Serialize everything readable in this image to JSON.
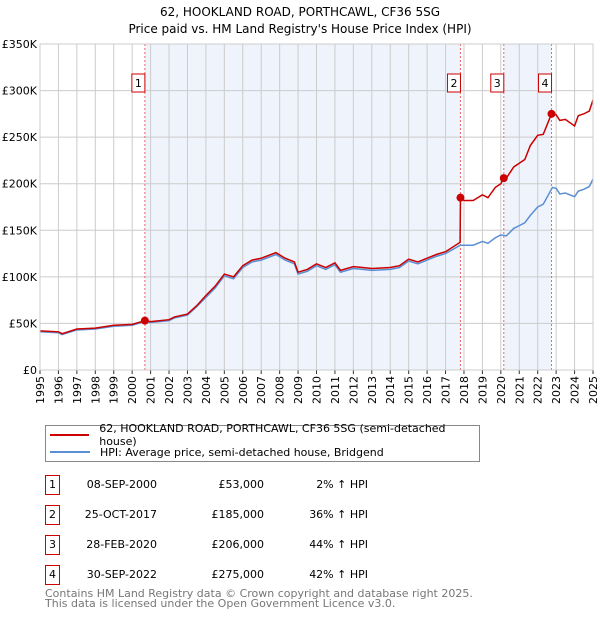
{
  "chart_data": {
    "type": "line",
    "title": "62, HOOKLAND ROAD, PORTHCAWL, CF36 5SG",
    "subtitle": "Price paid vs. HM Land Registry's House Price Index (HPI)",
    "xlim": [
      1995,
      2025
    ],
    "ylim": [
      0,
      350000
    ],
    "yticks": [
      0,
      50000,
      100000,
      150000,
      200000,
      250000,
      300000,
      350000
    ],
    "ytick_labels": [
      "£0",
      "£50K",
      "£100K",
      "£150K",
      "£200K",
      "£250K",
      "£300K",
      "£350K"
    ],
    "xticks": [
      "1995",
      "1996",
      "1997",
      "1998",
      "1999",
      "2000",
      "2001",
      "2002",
      "2003",
      "2004",
      "2005",
      "2006",
      "2007",
      "2008",
      "2009",
      "2010",
      "2011",
      "2012",
      "2013",
      "2014",
      "2015",
      "2016",
      "2017",
      "2018",
      "2019",
      "2020",
      "2021",
      "2022",
      "2023",
      "2024",
      "2025"
    ],
    "grid": true,
    "colors": {
      "property": "#cc0000",
      "hpi": "#5b8fd4",
      "shade": "#eef3fc"
    },
    "series": [
      {
        "name": "62, HOOKLAND ROAD, PORTHCAWL, CF36 5SG (semi-detached house)",
        "points": [
          [
            1995,
            42000
          ],
          [
            1996,
            41000
          ],
          [
            1996.2,
            39000
          ],
          [
            1997,
            44000
          ],
          [
            1998,
            45000
          ],
          [
            1999,
            48000
          ],
          [
            2000,
            49000
          ],
          [
            2000.69,
            53000
          ],
          [
            2001,
            52000
          ],
          [
            2002,
            54000
          ],
          [
            2002.3,
            57000
          ],
          [
            2003,
            60000
          ],
          [
            2003.5,
            69000
          ],
          [
            2004,
            80000
          ],
          [
            2004.5,
            90000
          ],
          [
            2005,
            103000
          ],
          [
            2005.5,
            100000
          ],
          [
            2006,
            112000
          ],
          [
            2006.5,
            118000
          ],
          [
            2007,
            120000
          ],
          [
            2007.8,
            126000
          ],
          [
            2008.3,
            120000
          ],
          [
            2008.8,
            116000
          ],
          [
            2009,
            105000
          ],
          [
            2009.5,
            108000
          ],
          [
            2010,
            114000
          ],
          [
            2010.5,
            110000
          ],
          [
            2011,
            115000
          ],
          [
            2011.3,
            107000
          ],
          [
            2012,
            111000
          ],
          [
            2012.5,
            110000
          ],
          [
            2013,
            109000
          ],
          [
            2014,
            110000
          ],
          [
            2014.5,
            112000
          ],
          [
            2015,
            119000
          ],
          [
            2015.5,
            116000
          ],
          [
            2016,
            120000
          ],
          [
            2016.5,
            124000
          ],
          [
            2017,
            127000
          ],
          [
            2017.79,
            137000
          ],
          [
            2017.81,
            185000
          ],
          [
            2018,
            182000
          ],
          [
            2018.5,
            182000
          ],
          [
            2019,
            188000
          ],
          [
            2019.3,
            185000
          ],
          [
            2019.7,
            196000
          ],
          [
            2020,
            200000
          ],
          [
            2020.16,
            206000
          ],
          [
            2020.3,
            206000
          ],
          [
            2020.7,
            218000
          ],
          [
            2021,
            222000
          ],
          [
            2021.3,
            226000
          ],
          [
            2021.6,
            241000
          ],
          [
            2022,
            252000
          ],
          [
            2022.3,
            253000
          ],
          [
            2022.75,
            275000
          ],
          [
            2023,
            274000
          ],
          [
            2023.2,
            268000
          ],
          [
            2023.5,
            269000
          ],
          [
            2024,
            262000
          ],
          [
            2024.2,
            273000
          ],
          [
            2024.5,
            275000
          ],
          [
            2024.8,
            278000
          ],
          [
            2025,
            290000
          ]
        ]
      },
      {
        "name": "HPI: Average price, semi-detached house, Bridgend",
        "points": [
          [
            1995,
            41000
          ],
          [
            1996,
            40000
          ],
          [
            1996.2,
            38000
          ],
          [
            1997,
            43000
          ],
          [
            1998,
            44000
          ],
          [
            1999,
            47000
          ],
          [
            2000,
            48000
          ],
          [
            2000.69,
            52000
          ],
          [
            2001,
            51000
          ],
          [
            2002,
            53000
          ],
          [
            2002.3,
            56000
          ],
          [
            2003,
            59000
          ],
          [
            2003.5,
            68000
          ],
          [
            2004,
            78000
          ],
          [
            2004.5,
            88000
          ],
          [
            2005,
            101000
          ],
          [
            2005.5,
            98000
          ],
          [
            2006,
            110000
          ],
          [
            2006.5,
            116000
          ],
          [
            2007,
            118000
          ],
          [
            2007.8,
            124000
          ],
          [
            2008.3,
            118000
          ],
          [
            2008.8,
            114000
          ],
          [
            2009,
            103000
          ],
          [
            2009.5,
            106000
          ],
          [
            2010,
            112000
          ],
          [
            2010.5,
            108000
          ],
          [
            2011,
            113000
          ],
          [
            2011.3,
            105000
          ],
          [
            2012,
            109000
          ],
          [
            2012.5,
            108000
          ],
          [
            2013,
            107000
          ],
          [
            2014,
            108000
          ],
          [
            2014.5,
            110000
          ],
          [
            2015,
            117000
          ],
          [
            2015.5,
            114000
          ],
          [
            2016,
            118000
          ],
          [
            2016.5,
            122000
          ],
          [
            2017,
            125000
          ],
          [
            2017.8,
            134000
          ],
          [
            2018,
            134000
          ],
          [
            2018.5,
            134000
          ],
          [
            2019,
            138000
          ],
          [
            2019.3,
            136000
          ],
          [
            2019.7,
            142000
          ],
          [
            2020,
            145000
          ],
          [
            2020.3,
            144000
          ],
          [
            2020.7,
            152000
          ],
          [
            2021,
            155000
          ],
          [
            2021.3,
            158000
          ],
          [
            2021.6,
            166000
          ],
          [
            2022,
            175000
          ],
          [
            2022.3,
            178000
          ],
          [
            2022.8,
            196000
          ],
          [
            2023,
            195000
          ],
          [
            2023.2,
            189000
          ],
          [
            2023.5,
            190000
          ],
          [
            2024,
            186000
          ],
          [
            2024.2,
            192000
          ],
          [
            2024.5,
            194000
          ],
          [
            2024.8,
            197000
          ],
          [
            2025,
            205000
          ]
        ]
      }
    ],
    "sales": [
      {
        "label": "1",
        "x": 2000.69,
        "price": 53000
      },
      {
        "label": "2",
        "x": 2017.81,
        "price": 185000
      },
      {
        "label": "3",
        "x": 2020.16,
        "price": 206000
      },
      {
        "label": "4",
        "x": 2022.75,
        "price": 275000
      }
    ],
    "shaded": [
      [
        2000.69,
        2017.81
      ],
      [
        2020.16,
        2022.75
      ]
    ]
  },
  "legend": {
    "property": "62, HOOKLAND ROAD, PORTHCAWL, CF36 5SG (semi-detached house)",
    "hpi": "HPI: Average price, semi-detached house, Bridgend"
  },
  "table": [
    {
      "n": "1",
      "date": "08-SEP-2000",
      "price": "£53,000",
      "pct": "2% ↑ HPI"
    },
    {
      "n": "2",
      "date": "25-OCT-2017",
      "price": "£185,000",
      "pct": "36% ↑ HPI"
    },
    {
      "n": "3",
      "date": "28-FEB-2020",
      "price": "£206,000",
      "pct": "44% ↑ HPI"
    },
    {
      "n": "4",
      "date": "30-SEP-2022",
      "price": "£275,000",
      "pct": "42% ↑ HPI"
    }
  ],
  "footer": {
    "line1": "Contains HM Land Registry data © Crown copyright and database right 2025.",
    "line2": "This data is licensed under the Open Government Licence v3.0."
  }
}
